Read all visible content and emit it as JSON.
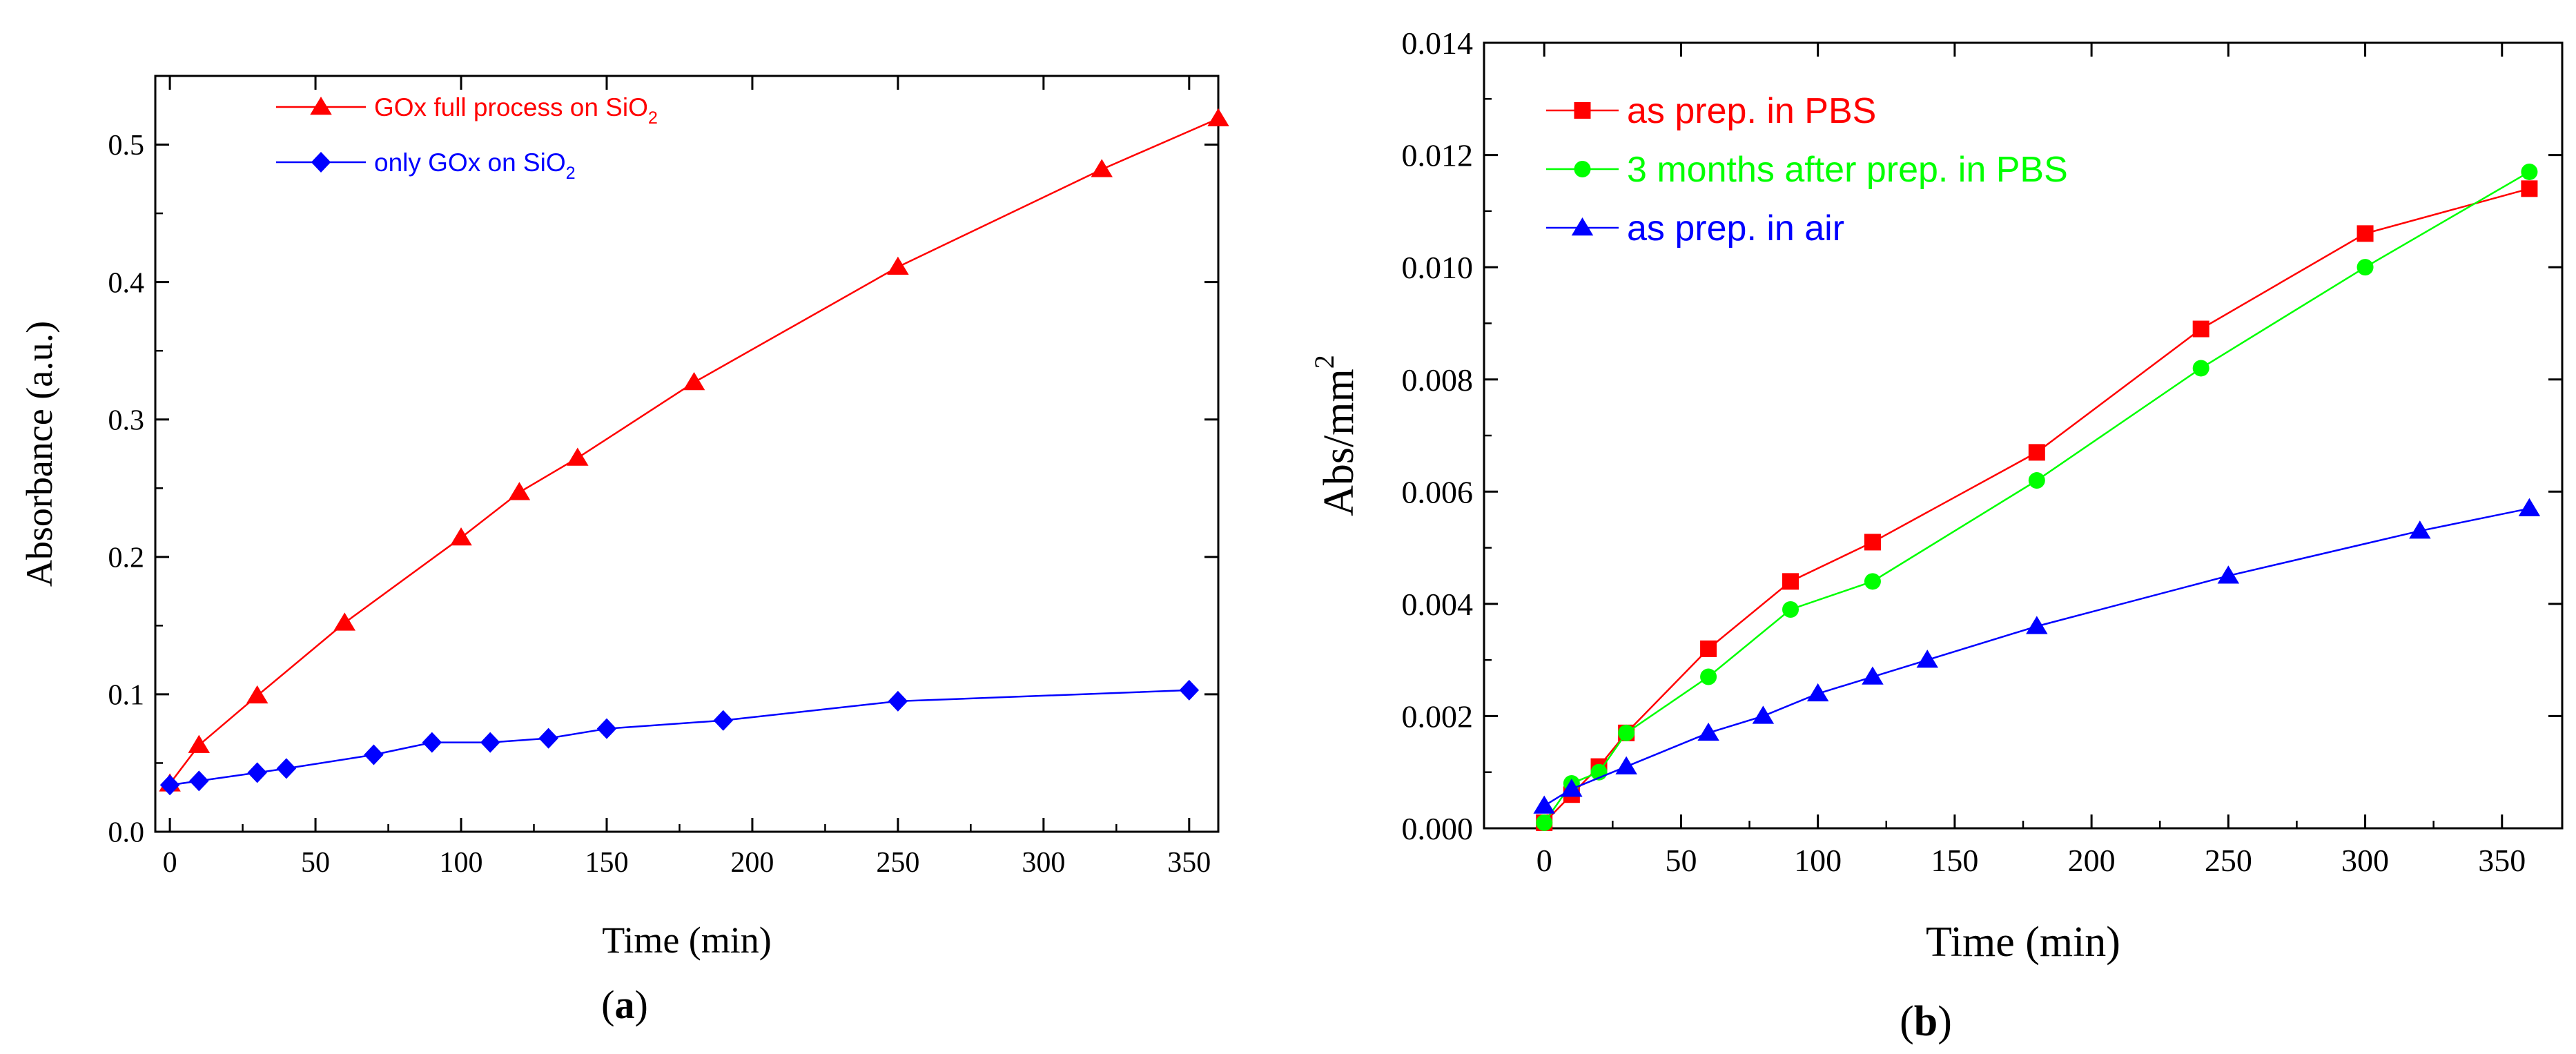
{
  "chart_data": [
    {
      "type": "line",
      "panel_label": "a",
      "xlabel": "Time (min)",
      "ylabel": "Absorbance (a.u.)",
      "xlim": [
        -5,
        360
      ],
      "ylim": [
        0.0,
        0.55
      ],
      "xticks": [
        0,
        50,
        100,
        150,
        200,
        250,
        300,
        350
      ],
      "yticks": [
        0.0,
        0.1,
        0.2,
        0.3,
        0.4,
        0.5
      ],
      "ytick_decimals": 1,
      "legend_position": "top-left",
      "series": [
        {
          "name": "GOx full process on SiO",
          "name_subscript": "2",
          "color": "#ff0000",
          "marker": "triangle",
          "x": [
            0,
            10,
            30,
            60,
            100,
            120,
            140,
            180,
            250,
            320,
            360
          ],
          "y": [
            0.035,
            0.063,
            0.099,
            0.152,
            0.214,
            0.247,
            0.272,
            0.327,
            0.411,
            0.482,
            0.519
          ]
        },
        {
          "name": "only GOx on SiO",
          "name_subscript": "2",
          "color": "#0000ff",
          "marker": "diamond",
          "x": [
            0,
            10,
            30,
            40,
            70,
            90,
            110,
            130,
            150,
            190,
            250,
            350
          ],
          "y": [
            0.034,
            0.037,
            0.043,
            0.046,
            0.056,
            0.065,
            0.065,
            0.068,
            0.075,
            0.081,
            0.095,
            0.103
          ]
        }
      ]
    },
    {
      "type": "line",
      "panel_label": "b",
      "xlabel": "Time (min)",
      "ylabel": "Abs/mm",
      "ylabel_superscript": "2",
      "xlim": [
        -22,
        372
      ],
      "ylim": [
        0.0,
        0.014
      ],
      "xticks": [
        0,
        50,
        100,
        150,
        200,
        250,
        300,
        350
      ],
      "yticks": [
        0.0,
        0.002,
        0.004,
        0.006,
        0.008,
        0.01,
        0.012,
        0.014
      ],
      "ytick_decimals": 3,
      "legend_position": "top-left",
      "series": [
        {
          "name": "as prep. in PBS",
          "color": "#ff0000",
          "marker": "square",
          "x": [
            0,
            10,
            20,
            30,
            60,
            90,
            120,
            180,
            240,
            300,
            360
          ],
          "y": [
            0.0001,
            0.0006,
            0.0011,
            0.0017,
            0.0032,
            0.0044,
            0.0051,
            0.0067,
            0.0089,
            0.0106,
            0.0114
          ]
        },
        {
          "name": "3 months after prep. in PBS",
          "color": "#00ff00",
          "marker": "circle",
          "x": [
            0,
            10,
            20,
            30,
            60,
            90,
            120,
            180,
            240,
            300,
            360
          ],
          "y": [
            0.0001,
            0.0008,
            0.001,
            0.0017,
            0.0027,
            0.0039,
            0.0044,
            0.0062,
            0.0082,
            0.01,
            0.0117
          ]
        },
        {
          "name": "as prep. in air",
          "color": "#0000ff",
          "marker": "triangle",
          "x": [
            0,
            10,
            30,
            60,
            80,
            100,
            120,
            140,
            180,
            250,
            320,
            360
          ],
          "y": [
            0.0004,
            0.0007,
            0.0011,
            0.0017,
            0.002,
            0.0024,
            0.0027,
            0.003,
            0.0036,
            0.0045,
            0.0053,
            0.0057
          ]
        }
      ]
    }
  ]
}
